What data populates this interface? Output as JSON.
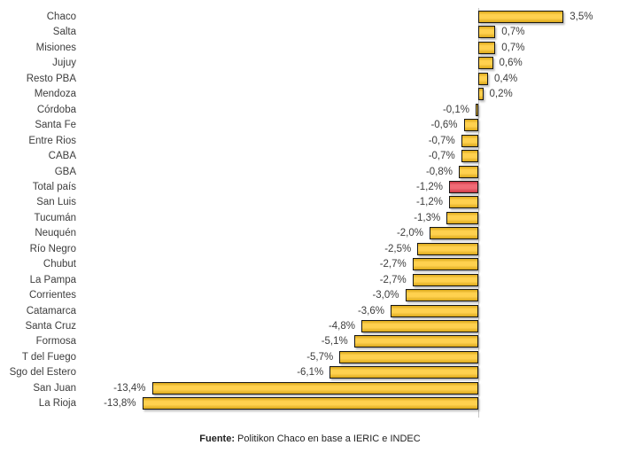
{
  "chart_data": {
    "type": "bar",
    "orientation": "horizontal",
    "title": "",
    "xlabel": "",
    "ylabel": "",
    "unit": "%",
    "decimal_separator": ",",
    "xlim": [
      -14.6,
      5.9
    ],
    "zero_line": true,
    "grid": false,
    "legend_position": "none",
    "categories": [
      "Chaco",
      "Salta",
      "Misiones",
      "Jujuy",
      "Resto PBA",
      "Mendoza",
      "Córdoba",
      "Santa Fe",
      "Entre Rios",
      "CABA",
      "GBA",
      "Total país",
      "San Luis",
      "Tucumán",
      "Neuquén",
      "Río Negro",
      "Chubut",
      "La Pampa",
      "Corrientes",
      "Catamarca",
      "Santa Cruz",
      "Formosa",
      "T del Fuego",
      "Sgo del Estero",
      "San Juan",
      "La Rioja"
    ],
    "values": [
      3.5,
      0.7,
      0.7,
      0.6,
      0.4,
      0.2,
      -0.1,
      -0.6,
      -0.7,
      -0.7,
      -0.8,
      -1.2,
      -1.2,
      -1.3,
      -2.0,
      -2.5,
      -2.7,
      -2.7,
      -3.0,
      -3.6,
      -4.8,
      -5.1,
      -5.7,
      -6.1,
      -13.4,
      -13.8
    ],
    "value_labels": [
      "3,5%",
      "0,7%",
      "0,7%",
      "0,6%",
      "0,4%",
      "0,2%",
      "-0,1%",
      "-0,6%",
      "-0,7%",
      "-0,7%",
      "-0,8%",
      "-1,2%",
      "-1,2%",
      "-1,3%",
      "-2,0%",
      "-2,5%",
      "-2,7%",
      "-2,7%",
      "-3,0%",
      "-3,6%",
      "-4,8%",
      "-5,1%",
      "-5,7%",
      "-6,1%",
      "-13,4%",
      "-13,8%"
    ],
    "highlight_index": 11,
    "highlight_category": "Total país",
    "colors": {
      "bar_fill": "#FFC41E",
      "bar_border": "#161616",
      "highlight_fill": "#ED4150",
      "axis_line": "#C5C5C5",
      "label_text": "#3D3D3D"
    }
  },
  "footer": {
    "source_label": "Fuente:",
    "source_text": " Politikon Chaco en base a IERIC e INDEC"
  }
}
